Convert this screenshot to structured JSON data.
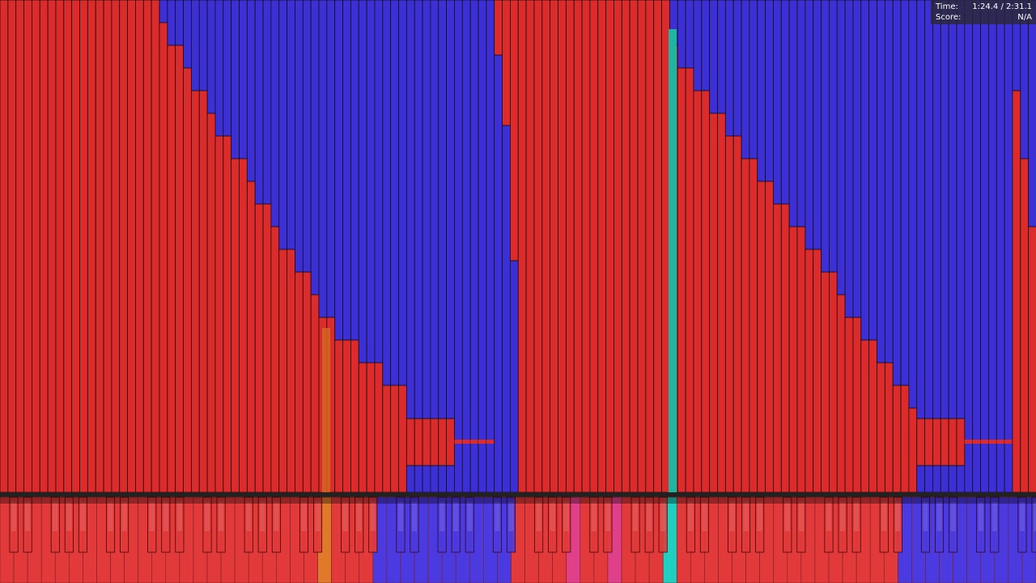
{
  "hud": {
    "time_label": "Time:",
    "time_value": "1:24.4 / 2:31.1",
    "score_label": "Score:",
    "score_value": "N/A"
  }
}
